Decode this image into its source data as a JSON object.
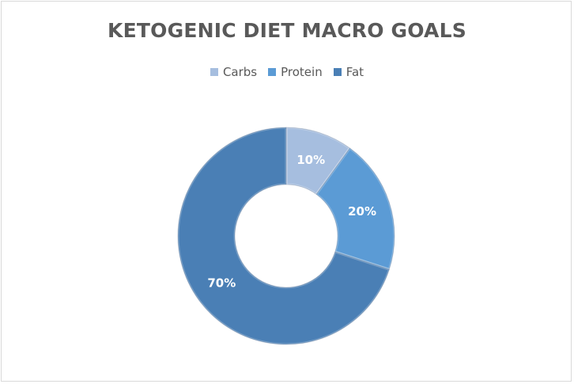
{
  "chart_data": {
    "type": "pie",
    "variant": "donut",
    "title": "KETOGENIC DIET MACRO GOALS",
    "legend_position": "top",
    "categories": [
      "Carbs",
      "Protein",
      "Fat"
    ],
    "values": [
      10,
      20,
      70
    ],
    "value_labels": [
      "10%",
      "20%",
      "70%"
    ],
    "colors": [
      "#a6bedf",
      "#5b9bd5",
      "#4a7fb5"
    ]
  }
}
